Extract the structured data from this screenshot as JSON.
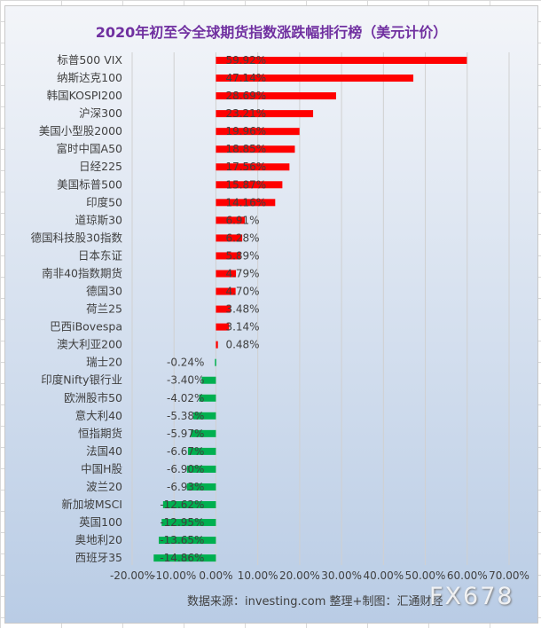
{
  "chart_data": {
    "type": "bar",
    "orientation": "horizontal",
    "title": "2020年初至今全球期货指数涨跌幅排行榜（美元计价）",
    "categories": [
      "标普500 VIX",
      "纳斯达克100",
      "韩国KOSPI200",
      "沪深300",
      "美国小型股2000",
      "富时中国A50",
      "日经225",
      "美国标普500",
      "印度50",
      "道琼斯30",
      "德国科技股30指数",
      "日本东证",
      "南非40指数期货",
      "德国30",
      "荷兰25",
      "巴西iBovespa",
      "澳大利亚200",
      "瑞士20",
      "印度Nifty银行业",
      "欧洲股市50",
      "意大利40",
      "恒指期货",
      "法国40",
      "中国H股",
      "波兰20",
      "新加坡MSCI",
      "英国100",
      "奥地利20",
      "西班牙35"
    ],
    "values": [
      59.92,
      47.14,
      28.69,
      23.21,
      19.96,
      18.85,
      17.56,
      15.87,
      14.16,
      6.91,
      6.28,
      5.89,
      4.79,
      4.7,
      3.48,
      3.14,
      0.48,
      -0.24,
      -3.4,
      -4.02,
      -5.38,
      -5.97,
      -6.67,
      -6.9,
      -6.93,
      -12.62,
      -12.95,
      -13.65,
      -14.86
    ],
    "labels": [
      "59.92%",
      "47.14%",
      "28.69%",
      "23.21%",
      "19.96%",
      "18.85%",
      "17.56%",
      "15.87%",
      "14.16%",
      "6.91%",
      "6.28%",
      "5.89%",
      "4.79%",
      "4.70%",
      "3.48%",
      "3.14%",
      "0.48%",
      "-0.24%",
      "-3.40%",
      "-4.02%",
      "-5.38%",
      "-5.97%",
      "-6.67%",
      "-6.90%",
      "-6.93%",
      "-12.62%",
      "-12.95%",
      "-13.65%",
      "-14.86%"
    ],
    "xlim": [
      -20,
      70
    ],
    "xticks": [
      "-20.00%",
      "-10.00%",
      "0.00%",
      "10.00%",
      "20.00%",
      "30.00%",
      "40.00%",
      "50.00%",
      "60.00%",
      "70.00%"
    ],
    "grid": true,
    "colors": {
      "positive": "#ff0000",
      "negative": "#00b050"
    }
  },
  "footer": "数据来源：investing.com 整理+制图：汇通财经",
  "watermark": "FX678"
}
